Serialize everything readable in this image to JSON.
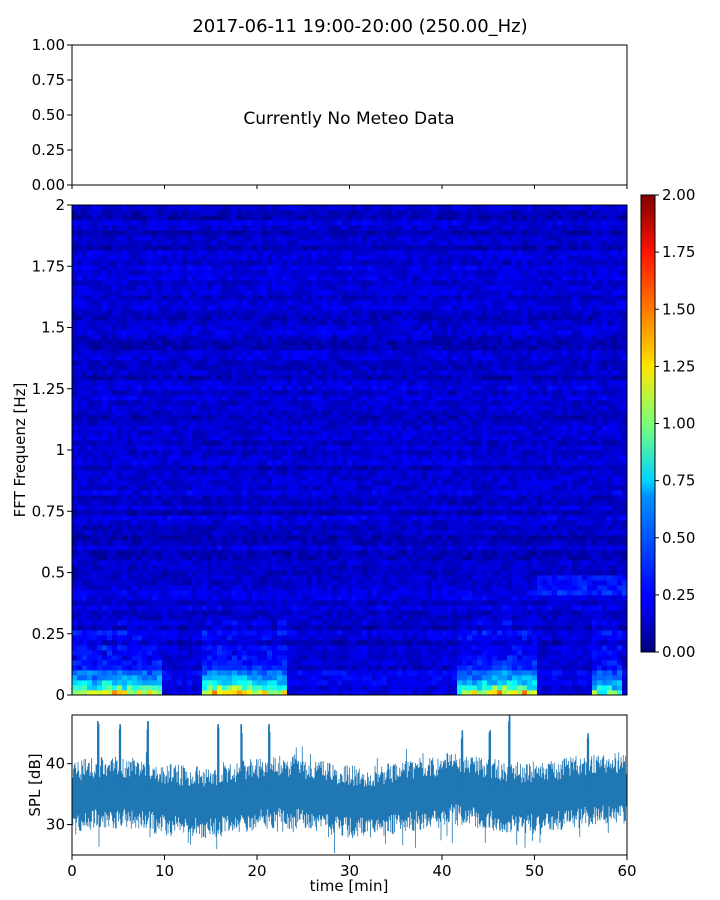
{
  "figure": {
    "title": "2017-06-11 19:00-20:00 (250.00_Hz)"
  },
  "chart_data": [
    {
      "id": "meteo",
      "type": "line",
      "annotation": "Currently No Meteo Data",
      "ylim": [
        0,
        1
      ],
      "yticks": [
        "0.00",
        "0.25",
        "0.50",
        "0.75",
        "1.00"
      ],
      "xlim": [
        0,
        60
      ],
      "series": []
    },
    {
      "id": "spectrogram",
      "type": "heatmap",
      "ylabel": "FFT Frequenz [Hz]",
      "xlim": [
        0,
        60
      ],
      "ylim": [
        0,
        2
      ],
      "yticks": [
        "0",
        "0.25",
        "0.5",
        "0.75",
        "1",
        "1.25",
        "1.5",
        "1.75",
        "2"
      ],
      "colormap": "jet",
      "colorbar": {
        "range": [
          0,
          2
        ],
        "ticks": [
          "0.00",
          "0.25",
          "0.50",
          "0.75",
          "1.00",
          "1.25",
          "1.50",
          "1.75",
          "2.00"
        ]
      },
      "background_level": 0.15,
      "low_freq_events": [
        {
          "x0": 0.0,
          "x1": 3.0,
          "level": 1.0
        },
        {
          "x0": 3.0,
          "x1": 5.5,
          "level": 1.2
        },
        {
          "x0": 5.5,
          "x1": 9.5,
          "level": 1.1
        },
        {
          "x0": 13.8,
          "x1": 16.5,
          "level": 1.3
        },
        {
          "x0": 16.5,
          "x1": 19.5,
          "level": 1.4
        },
        {
          "x0": 19.5,
          "x1": 23.0,
          "level": 1.1
        },
        {
          "x0": 41.5,
          "x1": 44.5,
          "level": 1.0
        },
        {
          "x0": 44.5,
          "x1": 47.5,
          "level": 1.3
        },
        {
          "x0": 47.5,
          "x1": 50.5,
          "level": 1.2
        },
        {
          "x0": 56.0,
          "x1": 59.5,
          "level": 0.8
        }
      ]
    },
    {
      "id": "spl",
      "type": "line",
      "ylabel": "SPL [dB]",
      "xlabel": "time [min]",
      "xlim": [
        0,
        60
      ],
      "ylim": [
        25,
        48
      ],
      "yticks": [
        "30",
        "40"
      ],
      "xticks": [
        "0",
        "10",
        "20",
        "30",
        "40",
        "50",
        "60"
      ],
      "series": [
        {
          "color": "#1f77b4",
          "baseline_db": 34.5,
          "spikes": [
            {
              "x": 2.8,
              "peak": 47
            },
            {
              "x": 5.2,
              "peak": 46.5
            },
            {
              "x": 8.2,
              "peak": 47
            },
            {
              "x": 15.8,
              "peak": 46.5
            },
            {
              "x": 18.3,
              "peak": 46.5
            },
            {
              "x": 21.3,
              "peak": 46.5
            },
            {
              "x": 42.2,
              "peak": 45.5
            },
            {
              "x": 45.2,
              "peak": 45.5
            },
            {
              "x": 47.3,
              "peak": 48
            },
            {
              "x": 55.8,
              "peak": 45
            }
          ]
        }
      ]
    }
  ]
}
